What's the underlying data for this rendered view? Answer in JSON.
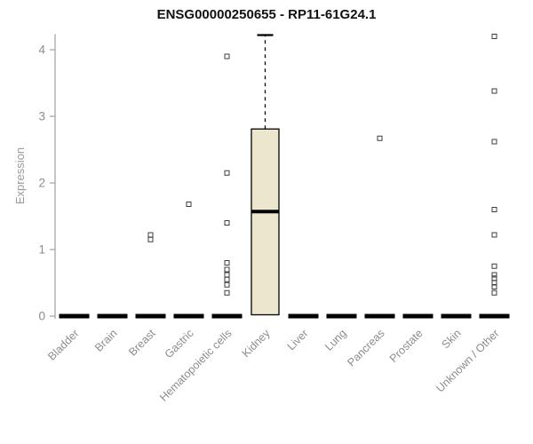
{
  "chart_data": {
    "type": "boxplot",
    "title": "ENSG00000250655 - RP11-61G24.1",
    "ylabel": "Expression",
    "ylim": [
      0,
      4.3
    ],
    "yticks": [
      0,
      1,
      2,
      3,
      4
    ],
    "categories": [
      "Bladder",
      "Brain",
      "Breast",
      "Gastric",
      "Hematopoietic cells",
      "Kidney",
      "Liver",
      "Lung",
      "Pancreas",
      "Prostate",
      "Skin",
      "Unknown / Other"
    ],
    "boxes": [
      {
        "category": "Bladder",
        "q1": 0,
        "median": 0,
        "q3": 0,
        "whisker_low": 0,
        "whisker_high": 0,
        "outliers": []
      },
      {
        "category": "Brain",
        "q1": 0,
        "median": 0,
        "q3": 0,
        "whisker_low": 0,
        "whisker_high": 0,
        "outliers": []
      },
      {
        "category": "Breast",
        "q1": 0,
        "median": 0,
        "q3": 0,
        "whisker_low": 0,
        "whisker_high": 0,
        "outliers": [
          1.15,
          1.22
        ]
      },
      {
        "category": "Gastric",
        "q1": 0,
        "median": 0,
        "q3": 0,
        "whisker_low": 0,
        "whisker_high": 0,
        "outliers": [
          1.68
        ]
      },
      {
        "category": "Hematopoietic cells",
        "q1": 0,
        "median": 0,
        "q3": 0,
        "whisker_low": 0,
        "whisker_high": 0,
        "outliers": [
          3.9,
          2.15,
          1.4,
          0.8,
          0.7,
          0.62,
          0.55,
          0.47,
          0.35
        ]
      },
      {
        "category": "Kidney",
        "q1": 0.02,
        "median": 1.57,
        "q3": 2.81,
        "whisker_low": 0,
        "whisker_high": 4.22,
        "outliers": []
      },
      {
        "category": "Liver",
        "q1": 0,
        "median": 0,
        "q3": 0,
        "whisker_low": 0,
        "whisker_high": 0,
        "outliers": []
      },
      {
        "category": "Lung",
        "q1": 0,
        "median": 0,
        "q3": 0,
        "whisker_low": 0,
        "whisker_high": 0,
        "outliers": []
      },
      {
        "category": "Pancreas",
        "q1": 0,
        "median": 0,
        "q3": 0,
        "whisker_low": 0,
        "whisker_high": 0,
        "outliers": [
          2.67
        ]
      },
      {
        "category": "Prostate",
        "q1": 0,
        "median": 0,
        "q3": 0,
        "whisker_low": 0,
        "whisker_high": 0,
        "outliers": []
      },
      {
        "category": "Skin",
        "q1": 0,
        "median": 0,
        "q3": 0,
        "whisker_low": 0,
        "whisker_high": 0,
        "outliers": []
      },
      {
        "category": "Unknown / Other",
        "q1": 0,
        "median": 0,
        "q3": 0,
        "whisker_low": 0,
        "whisker_high": 0,
        "outliers": [
          4.2,
          3.38,
          2.62,
          1.6,
          1.22,
          0.75,
          0.62,
          0.57,
          0.5,
          0.44,
          0.35
        ]
      }
    ],
    "layout": {
      "grid": false,
      "legend": "none",
      "x_tick_rotation": -45
    },
    "colors": {
      "box_fill": "#EDE6CE",
      "box_stroke": "#000000",
      "median": "#000000",
      "axis": "#A8A8A8",
      "tick_label": "#8C8C8C",
      "outlier": "#3C3C3C",
      "title": "#111111"
    }
  }
}
